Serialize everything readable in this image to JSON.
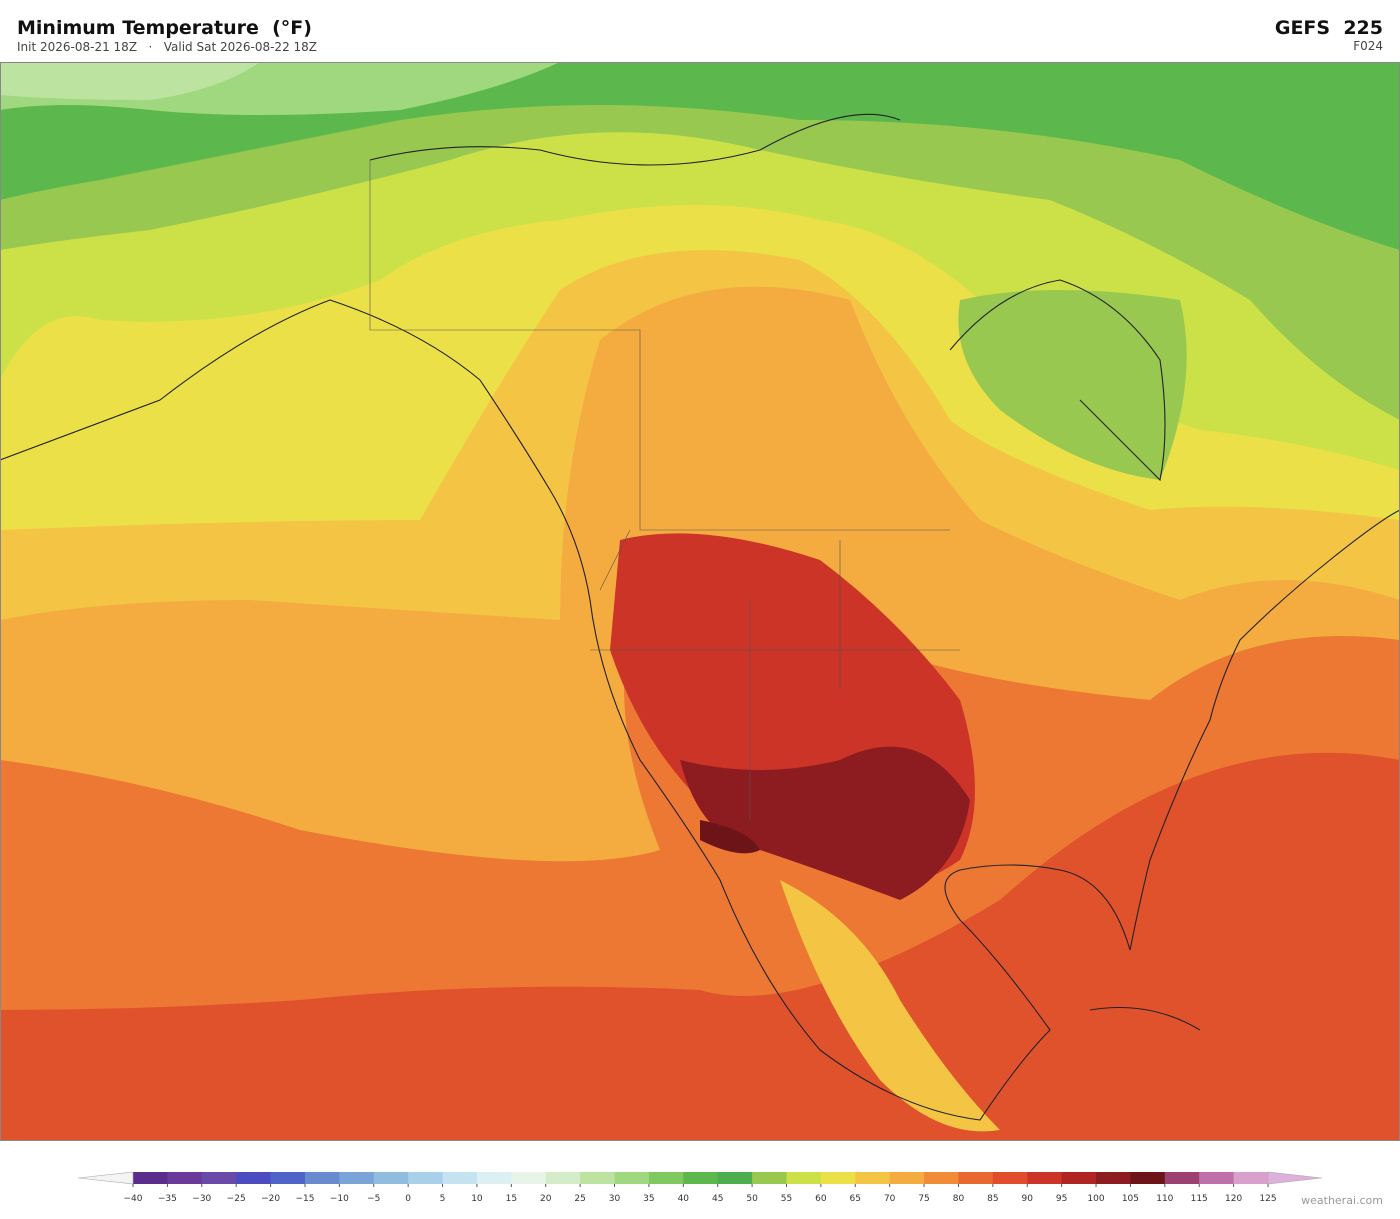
{
  "header": {
    "title": "Minimum Temperature  (°F)",
    "subtitle": "Init 2026-08-21 18Z   ·   Valid Sat 2026-08-22 18Z",
    "model": "GEFS  225",
    "forecast_hour": "F024"
  },
  "colorbar": {
    "ticks": [
      {
        "value": -40,
        "label": "−40"
      },
      {
        "value": -35,
        "label": "−35"
      },
      {
        "value": -30,
        "label": "−30"
      },
      {
        "value": -25,
        "label": "−25"
      },
      {
        "value": -20,
        "label": "−20"
      },
      {
        "value": -15,
        "label": "−15"
      },
      {
        "value": -10,
        "label": "−10"
      },
      {
        "value": -5,
        "label": "−5"
      },
      0,
      5,
      10,
      15,
      20,
      25,
      30,
      35,
      40,
      45,
      50,
      55,
      60,
      65,
      70,
      75,
      80,
      85,
      90,
      95,
      100,
      105,
      110,
      115,
      120,
      125
    ],
    "colors": [
      "#5a2d8c",
      "#6a3a9a",
      "#6a4aa8",
      "#4a4cc0",
      "#4f64c8",
      "#6a8ad0",
      "#7aa4d8",
      "#90bce0",
      "#a8d0ea",
      "#c4e2f0",
      "#dcf0f4",
      "#e8f4e8",
      "#d4ecc8",
      "#bce4a0",
      "#a0d880",
      "#80c860",
      "#5cb84c",
      "#4cae4c",
      "#98c850",
      "#cce048",
      "#ece048",
      "#f4c444",
      "#f4ac40",
      "#f08c38",
      "#e86830",
      "#e04c2c",
      "#cc3428",
      "#b02424",
      "#8c1c20",
      "#6c1418",
      "#9c4070",
      "#c070a8",
      "#d8a0cc"
    ],
    "under_color": "#f4f4f4",
    "over_color": "#e0b0dc"
  },
  "footer": {
    "credit": "weatherai.com"
  }
}
